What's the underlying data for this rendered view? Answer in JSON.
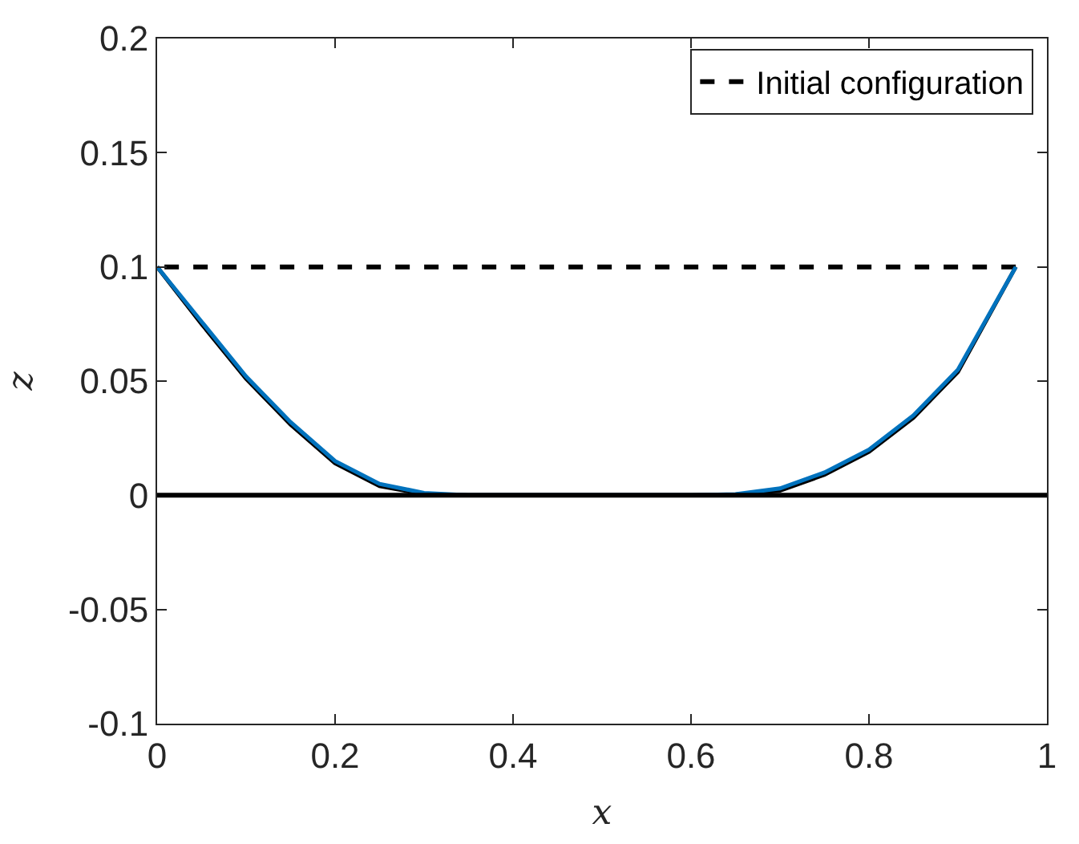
{
  "chart_data": {
    "type": "line",
    "xlabel": "x",
    "ylabel": "z",
    "xlim": [
      0,
      1
    ],
    "xticks": [
      0,
      0.2,
      0.4,
      0.6,
      0.8,
      1
    ],
    "ylim": [
      -0.1,
      0.2
    ],
    "yticks": [
      -0.1,
      -0.05,
      0,
      0.05,
      0.1,
      0.15,
      0.2
    ],
    "series": [
      {
        "name": "Initial configuration",
        "color": "#000000",
        "line_style": "dashed",
        "x": [
          0.965,
          0
        ],
        "values": [
          0.1,
          0.1
        ]
      },
      {
        "color": "#000000",
        "line_style": "solid",
        "x": [
          0,
          0.05,
          0.1,
          0.15,
          0.2,
          0.25,
          0.3,
          0.35,
          0.6,
          0.65,
          0.7,
          0.75,
          0.8,
          0.85,
          0.9,
          0.965
        ],
        "values": [
          0.1,
          0.075,
          0.051,
          0.031,
          0.014,
          0.004,
          0.0005,
          0,
          0,
          0.0003,
          0.002,
          0.009,
          0.019,
          0.034,
          0.054,
          0.1
        ]
      },
      {
        "color": "#0072bd",
        "line_style": "solid",
        "x": [
          0,
          0.05,
          0.1,
          0.15,
          0.2,
          0.25,
          0.3,
          0.35,
          0.6,
          0.65,
          0.7,
          0.75,
          0.8,
          0.85,
          0.9,
          0.965
        ],
        "values": [
          0.1,
          0.076,
          0.052,
          0.032,
          0.015,
          0.005,
          0.001,
          0,
          0,
          0.0005,
          0.003,
          0.01,
          0.02,
          0.035,
          0.055,
          0.1
        ]
      }
    ],
    "ref_lines": [
      {
        "axis": "y",
        "value": 0,
        "color": "#000000",
        "line_style": "solid"
      }
    ],
    "legend": "top right"
  }
}
